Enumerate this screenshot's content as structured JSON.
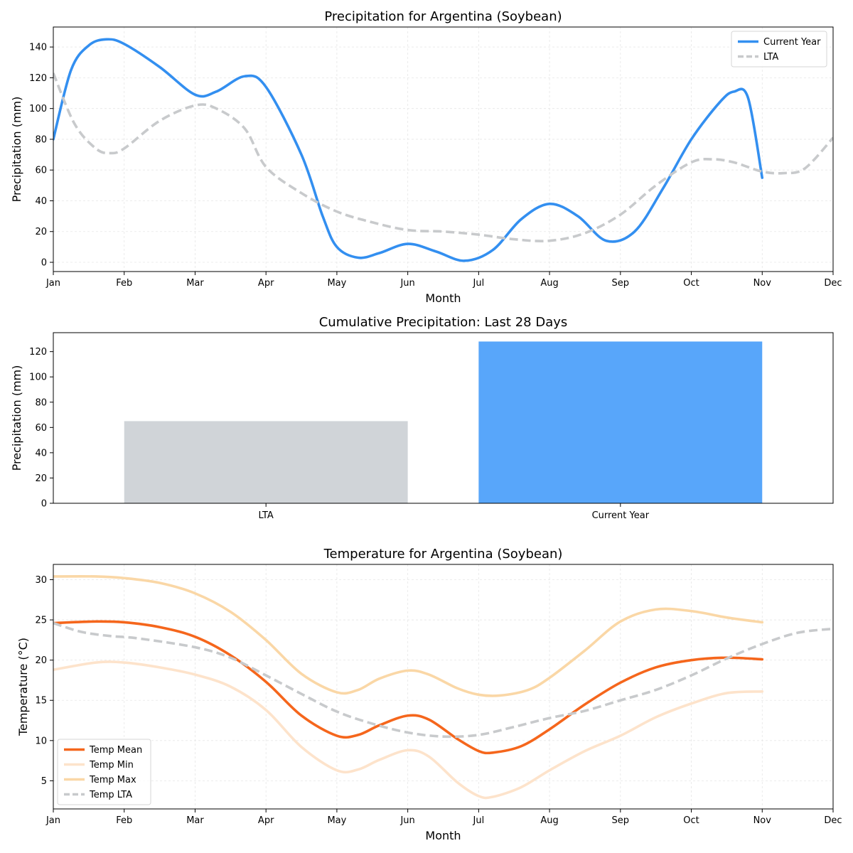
{
  "colors": {
    "current_year": "#338ff0",
    "lta": "#c8cacc",
    "lta_bar": "#d0d4d8",
    "current_bar": "#58a6fa",
    "temp_mean": "#f5661c",
    "temp_min": "#fde3cb",
    "temp_max": "#fad7a6",
    "temp_lta": "#c8cacc",
    "grid": "#e6e6e6"
  },
  "chart_data": [
    {
      "type": "line",
      "title": "Precipitation for Argentina (Soybean)",
      "xlabel": "Month",
      "ylabel": "Precipitation (mm)",
      "xlim": [
        0,
        11
      ],
      "ylim": [
        -6,
        153
      ],
      "x_ticks": [
        "Jan",
        "Feb",
        "Mar",
        "Apr",
        "May",
        "Jun",
        "Jul",
        "Aug",
        "Sep",
        "Oct",
        "Nov",
        "Dec"
      ],
      "y_ticks": [
        0,
        20,
        40,
        60,
        80,
        100,
        120,
        140
      ],
      "grid": true,
      "legend_position": "top-right",
      "series": [
        {
          "name": "Current Year",
          "style": "solid",
          "color_key": "current_year",
          "points": [
            [
              0,
              80
            ],
            [
              0.25,
              125
            ],
            [
              0.5,
              141
            ],
            [
              0.75,
              145
            ],
            [
              1,
              142
            ],
            [
              1.5,
              127
            ],
            [
              2,
              109
            ],
            [
              2.3,
              111
            ],
            [
              2.7,
              121
            ],
            [
              3,
              114
            ],
            [
              3.5,
              70
            ],
            [
              3.8,
              30
            ],
            [
              4,
              10
            ],
            [
              4.3,
              3
            ],
            [
              4.6,
              6
            ],
            [
              5,
              12
            ],
            [
              5.4,
              7
            ],
            [
              5.8,
              1
            ],
            [
              6.2,
              8
            ],
            [
              6.6,
              28
            ],
            [
              7,
              38
            ],
            [
              7.4,
              30
            ],
            [
              7.8,
              14
            ],
            [
              8.2,
              20
            ],
            [
              8.6,
              48
            ],
            [
              9,
              80
            ],
            [
              9.4,
              104
            ],
            [
              9.6,
              111
            ],
            [
              9.8,
              107
            ],
            [
              10,
              55
            ]
          ]
        },
        {
          "name": "LTA",
          "style": "dashed",
          "color_key": "lta",
          "points": [
            [
              0,
              123
            ],
            [
              0.3,
              90
            ],
            [
              0.6,
              74
            ],
            [
              0.8,
              71
            ],
            [
              1,
              74
            ],
            [
              1.5,
              92
            ],
            [
              2,
              102
            ],
            [
              2.3,
              100
            ],
            [
              2.7,
              87
            ],
            [
              3,
              62
            ],
            [
              3.5,
              45
            ],
            [
              4,
              33
            ],
            [
              4.5,
              26
            ],
            [
              5,
              21
            ],
            [
              5.5,
              20
            ],
            [
              6,
              18
            ],
            [
              6.5,
              15
            ],
            [
              7,
              14
            ],
            [
              7.5,
              19
            ],
            [
              8,
              31
            ],
            [
              8.5,
              50
            ],
            [
              9,
              65
            ],
            [
              9.3,
              67
            ],
            [
              9.6,
              65
            ],
            [
              10,
              59
            ],
            [
              10.3,
              58
            ],
            [
              10.6,
              61
            ],
            [
              11,
              81
            ]
          ]
        }
      ]
    },
    {
      "type": "bar",
      "title": "Cumulative Precipitation: Last 28 Days",
      "xlabel": "",
      "ylabel": "Precipitation (mm)",
      "categories": [
        "LTA",
        "Current Year"
      ],
      "values": [
        65,
        128
      ],
      "bar_color_keys": [
        "lta_bar",
        "current_bar"
      ],
      "ylim": [
        0,
        135
      ],
      "y_ticks": [
        0,
        20,
        40,
        60,
        80,
        100,
        120
      ]
    },
    {
      "type": "line",
      "title": "Temperature for Argentina (Soybean)",
      "xlabel": "Month",
      "ylabel": "Temperature (°C)",
      "xlim": [
        0,
        11
      ],
      "ylim": [
        1.5,
        31.9
      ],
      "x_ticks": [
        "Jan",
        "Feb",
        "Mar",
        "Apr",
        "May",
        "Jun",
        "Jul",
        "Aug",
        "Sep",
        "Oct",
        "Nov",
        "Dec"
      ],
      "y_ticks": [
        5,
        10,
        15,
        20,
        25,
        30
      ],
      "grid": true,
      "legend_position": "bottom-left",
      "series": [
        {
          "name": "Temp Mean",
          "style": "solid",
          "color_key": "temp_mean",
          "points": [
            [
              0,
              24.6
            ],
            [
              0.6,
              24.8
            ],
            [
              1,
              24.7
            ],
            [
              1.5,
              24.1
            ],
            [
              2,
              22.9
            ],
            [
              2.5,
              20.6
            ],
            [
              3,
              17.3
            ],
            [
              3.5,
              13.1
            ],
            [
              4,
              10.6
            ],
            [
              4.3,
              10.7
            ],
            [
              4.6,
              11.9
            ],
            [
              5,
              13.1
            ],
            [
              5.3,
              12.6
            ],
            [
              5.7,
              10.2
            ],
            [
              6,
              8.7
            ],
            [
              6.2,
              8.5
            ],
            [
              6.6,
              9.3
            ],
            [
              7,
              11.4
            ],
            [
              7.5,
              14.5
            ],
            [
              8,
              17.2
            ],
            [
              8.5,
              19.1
            ],
            [
              9,
              20.0
            ],
            [
              9.5,
              20.3
            ],
            [
              10,
              20.1
            ]
          ]
        },
        {
          "name": "Temp Min",
          "style": "solid",
          "color_key": "temp_min",
          "points": [
            [
              0,
              18.8
            ],
            [
              0.6,
              19.7
            ],
            [
              1,
              19.7
            ],
            [
              1.5,
              19.1
            ],
            [
              2,
              18.2
            ],
            [
              2.5,
              16.7
            ],
            [
              3,
              13.8
            ],
            [
              3.5,
              9.2
            ],
            [
              4,
              6.3
            ],
            [
              4.3,
              6.4
            ],
            [
              4.6,
              7.6
            ],
            [
              5,
              8.8
            ],
            [
              5.3,
              8.0
            ],
            [
              5.7,
              4.8
            ],
            [
              6,
              3.1
            ],
            [
              6.2,
              3.0
            ],
            [
              6.6,
              4.2
            ],
            [
              7,
              6.3
            ],
            [
              7.5,
              8.7
            ],
            [
              8,
              10.6
            ],
            [
              8.5,
              12.9
            ],
            [
              9,
              14.6
            ],
            [
              9.5,
              15.9
            ],
            [
              10,
              16.1
            ]
          ]
        },
        {
          "name": "Temp Max",
          "style": "solid",
          "color_key": "temp_max",
          "points": [
            [
              0,
              30.4
            ],
            [
              0.6,
              30.4
            ],
            [
              1,
              30.2
            ],
            [
              1.5,
              29.6
            ],
            [
              2,
              28.3
            ],
            [
              2.5,
              26.0
            ],
            [
              3,
              22.5
            ],
            [
              3.5,
              18.3
            ],
            [
              4,
              16.0
            ],
            [
              4.3,
              16.3
            ],
            [
              4.6,
              17.7
            ],
            [
              5,
              18.7
            ],
            [
              5.3,
              18.2
            ],
            [
              5.7,
              16.5
            ],
            [
              6,
              15.7
            ],
            [
              6.3,
              15.6
            ],
            [
              6.7,
              16.3
            ],
            [
              7,
              17.8
            ],
            [
              7.5,
              21.2
            ],
            [
              8,
              24.8
            ],
            [
              8.5,
              26.3
            ],
            [
              9,
              26.1
            ],
            [
              9.5,
              25.3
            ],
            [
              10,
              24.7
            ]
          ]
        },
        {
          "name": "Temp LTA",
          "style": "dashed",
          "color_key": "temp_lta",
          "points": [
            [
              0,
              24.6
            ],
            [
              0.4,
              23.5
            ],
            [
              0.8,
              23.0
            ],
            [
              1.2,
              22.7
            ],
            [
              2,
              21.6
            ],
            [
              2.5,
              20.3
            ],
            [
              3,
              18.1
            ],
            [
              3.5,
              15.8
            ],
            [
              4,
              13.6
            ],
            [
              4.5,
              12.1
            ],
            [
              5,
              11.0
            ],
            [
              5.5,
              10.5
            ],
            [
              6,
              10.7
            ],
            [
              6.5,
              11.7
            ],
            [
              7,
              12.8
            ],
            [
              7.5,
              13.7
            ],
            [
              8,
              15.0
            ],
            [
              8.5,
              16.3
            ],
            [
              9,
              18.1
            ],
            [
              9.5,
              20.2
            ],
            [
              10,
              22.0
            ],
            [
              10.5,
              23.4
            ],
            [
              11,
              23.9
            ]
          ]
        }
      ]
    }
  ]
}
